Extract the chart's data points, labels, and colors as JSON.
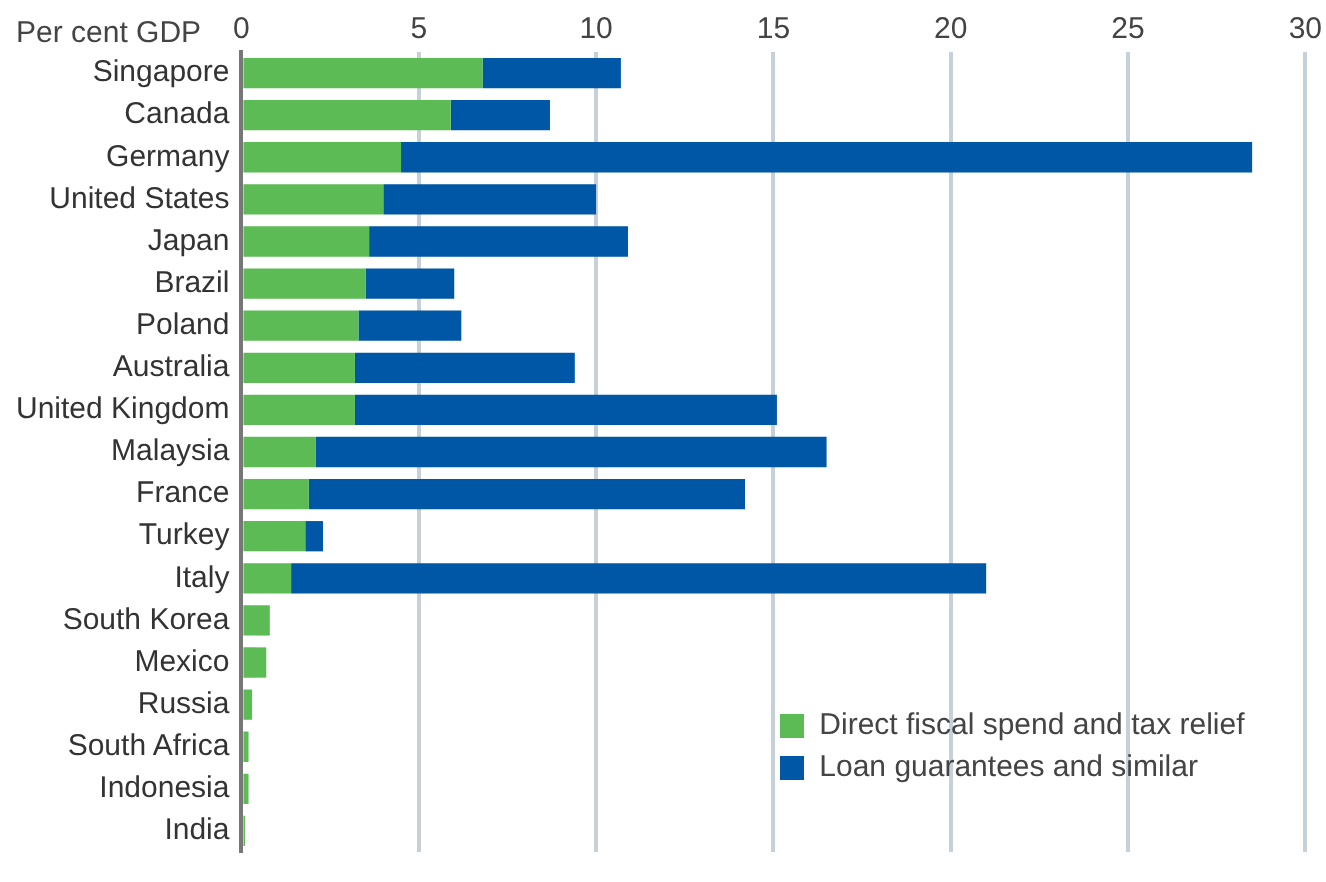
{
  "chart_data": {
    "type": "bar",
    "orientation": "horizontal",
    "stacked": true,
    "xlabel": "Per cent GDP",
    "categories": [
      "Singapore",
      "Canada",
      "Germany",
      "United States",
      "Japan",
      "Brazil",
      "Poland",
      "Australia",
      "United Kingdom",
      "Malaysia",
      "France",
      "Turkey",
      "Italy",
      "South Korea",
      "Mexico",
      "Russia",
      "South Africa",
      "Indonesia",
      "India"
    ],
    "series": [
      {
        "name": "Direct fiscal spend and tax relief",
        "color": "#5cbb55",
        "values": [
          6.8,
          5.9,
          4.5,
          4.0,
          3.6,
          3.5,
          3.3,
          3.2,
          3.2,
          2.1,
          1.9,
          1.8,
          1.4,
          0.8,
          0.7,
          0.3,
          0.2,
          0.2,
          0.1
        ]
      },
      {
        "name": "Loan guarantees and similar",
        "color": "#0057a5",
        "values": [
          3.9,
          2.8,
          24.0,
          6.0,
          7.3,
          2.5,
          2.9,
          6.2,
          11.9,
          14.4,
          12.3,
          0.5,
          19.6,
          0,
          0,
          0,
          0,
          0,
          0
        ]
      }
    ],
    "xlim": [
      0,
      30
    ],
    "xticks": [
      0,
      5,
      10,
      15,
      20,
      25,
      30
    ],
    "grid": "x",
    "legend": "bottom right"
  }
}
